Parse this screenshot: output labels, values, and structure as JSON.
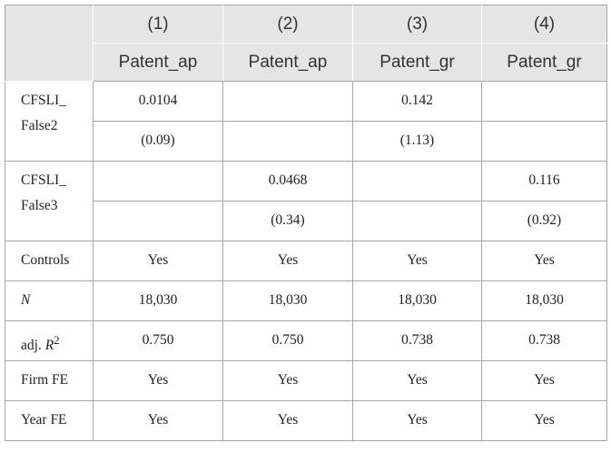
{
  "table": {
    "header": {
      "numbers": [
        "(1)",
        "(2)",
        "(3)",
        "(4)"
      ],
      "variables": [
        "Patent_ap",
        "Patent_ap",
        "Patent_gr",
        "Patent_gr"
      ]
    },
    "rows": [
      {
        "label": "CFSLI_ False2",
        "lines": [
          [
            "0.0104",
            null,
            "0.142",
            null
          ],
          [
            "(0.09)",
            null,
            "(1.13)",
            null
          ]
        ]
      },
      {
        "label": "CFSLI_ False3",
        "lines": [
          [
            null,
            "0.0468",
            null,
            "0.116"
          ],
          [
            null,
            "(0.34)",
            null,
            "(0.92)"
          ]
        ]
      },
      {
        "label": "Controls",
        "lines": [
          [
            "Yes",
            "Yes",
            "Yes",
            "Yes"
          ]
        ]
      },
      {
        "label_italic": "N",
        "lines": [
          [
            "18,030",
            "18,030",
            "18,030",
            "18,030"
          ]
        ]
      },
      {
        "label": "adj. ",
        "label_italic": "R",
        "label_sup": "2",
        "lines": [
          [
            "0.750",
            "0.750",
            "0.738",
            "0.738"
          ]
        ]
      },
      {
        "label": "Firm FE",
        "lines": [
          [
            "Yes",
            "Yes",
            "Yes",
            "Yes"
          ]
        ]
      },
      {
        "label": "Year FE",
        "lines": [
          [
            "Yes",
            "Yes",
            "Yes",
            "Yes"
          ]
        ]
      }
    ]
  }
}
